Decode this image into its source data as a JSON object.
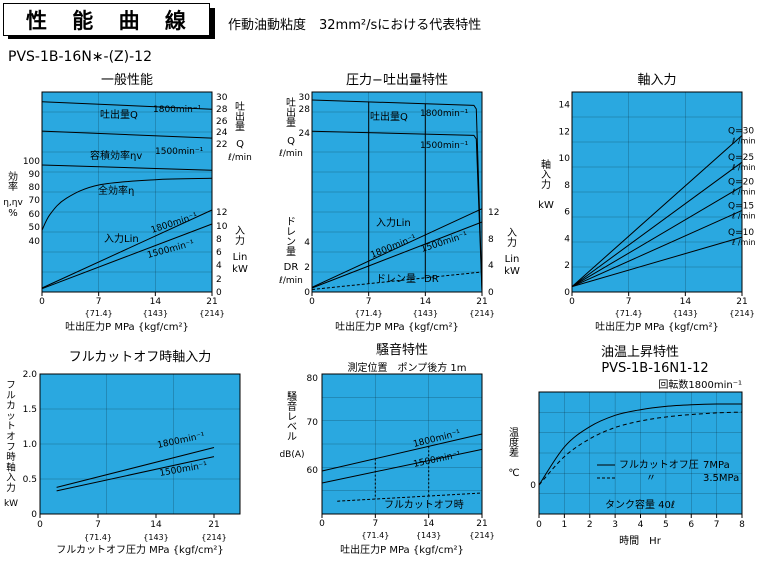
{
  "header": {
    "title": "性 能 曲 線",
    "subtitle": "作動油動粘度　32mm²/sにおける代表特性"
  },
  "model": "PVS-1B-16N∗-(Z)-12",
  "colors": {
    "plot_bg": "#2aa8e0",
    "line": "#000000"
  },
  "chart_data": [
    {
      "id": "c1",
      "type": "line",
      "title": "一般性能",
      "xlabel": "吐出圧力P MPa {kgf/cm²}",
      "x_ticks": [
        {
          "v": "0",
          "s": ""
        },
        {
          "v": "7",
          "s": "{71.4}"
        },
        {
          "v": "14",
          "s": "{143}"
        },
        {
          "v": "21",
          "s": "{214}"
        }
      ],
      "left_axis": {
        "label": "効率 η,ηv %",
        "ticks": [
          "100",
          "90",
          "80",
          "70",
          "60",
          "50",
          "40"
        ]
      },
      "right_top_axis": {
        "label": "吐出量 Q ℓ/min",
        "ticks": [
          "30",
          "28",
          "26",
          "24",
          "22"
        ]
      },
      "right_bottom_axis": {
        "label": "入力 Lin kW",
        "ticks": [
          "12",
          "10",
          "8",
          "6",
          "4",
          "2",
          "0"
        ]
      },
      "series": [
        {
          "name": "吐出量Q 1800min⁻¹",
          "x": [
            0,
            21
          ],
          "y": [
            29.2,
            27.9
          ]
        },
        {
          "name": "吐出量Q 1500min⁻¹",
          "x": [
            0,
            21
          ],
          "y": [
            24.2,
            23.0
          ]
        },
        {
          "name": "容積効率ηv",
          "x": [
            0,
            21
          ],
          "y": [
            97,
            93
          ]
        },
        {
          "name": "全効率η",
          "x": [
            0,
            1,
            3,
            7,
            14,
            21
          ],
          "y": [
            48,
            60,
            72,
            82,
            86,
            87
          ]
        },
        {
          "name": "入力Lin 1800min⁻¹",
          "x": [
            0,
            21
          ],
          "y": [
            0.6,
            12.3
          ]
        },
        {
          "name": "入力Lin 1500min⁻¹",
          "x": [
            0,
            21
          ],
          "y": [
            0.5,
            10.2
          ]
        }
      ],
      "labels": [
        "吐出量Q",
        "1800min⁻¹",
        "1500min⁻¹",
        "容積効率ηv",
        "全効率η",
        "入力Lin",
        "1800min⁻¹",
        "1500min⁻¹"
      ]
    },
    {
      "id": "c2",
      "type": "line",
      "title": "圧力−吐出量特性",
      "xlabel": "吐出圧力P MPa {kgf/cm²}",
      "x_ticks": [
        {
          "v": "0",
          "s": ""
        },
        {
          "v": "7",
          "s": "{71.4}"
        },
        {
          "v": "14",
          "s": "{143}"
        },
        {
          "v": "21",
          "s": "{214}"
        }
      ],
      "left_top_axis": {
        "label": "吐出量 Q ℓ/min",
        "ticks": [
          "30",
          "28",
          "24"
        ]
      },
      "left_bottom_axis": {
        "label": "ドレン量 DR ℓ/min",
        "ticks": [
          "4",
          "2",
          "0"
        ]
      },
      "right_axis": {
        "label": "入力 Lin kW",
        "ticks": [
          "12",
          "8",
          "4",
          "0"
        ]
      },
      "series": [
        {
          "name": "吐出量Q 1800min⁻¹",
          "x": [
            0,
            20,
            21
          ],
          "y": [
            29.5,
            28.6,
            0
          ]
        },
        {
          "name": "吐出量Q 1500min⁻¹",
          "x": [
            0,
            20,
            21
          ],
          "y": [
            24.3,
            23.6,
            0
          ]
        },
        {
          "name": "入力Lin 1800min⁻¹",
          "x": [
            0,
            21
          ],
          "y": [
            0.7,
            12.5
          ]
        },
        {
          "name": "入力Lin 1500min⁻¹",
          "x": [
            0,
            21
          ],
          "y": [
            0.6,
            10.5
          ]
        },
        {
          "name": "ドレン量DR",
          "x": [
            0,
            21
          ],
          "y": [
            0.2,
            1.6
          ]
        }
      ],
      "labels": [
        "吐出量Q",
        "1800min⁻¹",
        "1500min⁻¹",
        "入力Lin",
        "1800min⁻¹",
        "1500min⁻¹",
        "ドレン量",
        "DR"
      ]
    },
    {
      "id": "c3",
      "type": "line",
      "title": "軸入力",
      "xlabel": "吐出圧力P MPa {kgf/cm²}",
      "x_ticks": [
        {
          "v": "0",
          "s": ""
        },
        {
          "v": "7",
          "s": "{71.4}"
        },
        {
          "v": "14",
          "s": "{143}"
        },
        {
          "v": "21",
          "s": "{214}"
        }
      ],
      "left_axis": {
        "label": "軸入力 kW",
        "ticks": [
          "14",
          "12",
          "10",
          "8",
          "6",
          "4",
          "2",
          "0"
        ]
      },
      "ylim": [
        0,
        15
      ],
      "series": [
        {
          "name": "Q=30",
          "x": [
            0,
            21
          ],
          "y": [
            0.4,
            11.7
          ]
        },
        {
          "name": "Q=25",
          "x": [
            0,
            21
          ],
          "y": [
            0.4,
            9.7
          ]
        },
        {
          "name": "Q=20",
          "x": [
            0,
            21
          ],
          "y": [
            0.4,
            7.9
          ]
        },
        {
          "name": "Q=15",
          "x": [
            0,
            21
          ],
          "y": [
            0.4,
            6.1
          ]
        },
        {
          "name": "Q=10",
          "x": [
            0,
            21
          ],
          "y": [
            0.4,
            4.1
          ]
        }
      ],
      "q_labels": [
        "Q=30",
        "Q=25",
        "Q=20",
        "Q=15",
        "Q=10"
      ],
      "unit": "ℓ /min"
    },
    {
      "id": "c4",
      "type": "line",
      "title": "フルカットオフ時軸入力",
      "xlabel": "フルカットオフ圧力 MPa {kgf/cm²}",
      "x_ticks": [
        {
          "v": "0",
          "s": ""
        },
        {
          "v": "7",
          "s": "{71.4}"
        },
        {
          "v": "14",
          "s": "{143}"
        },
        {
          "v": "21",
          "s": "{214}"
        }
      ],
      "left_axis": {
        "label": "フルカットオフ時軸入力 kW",
        "ticks": [
          "2.0",
          "1.5",
          "1.0",
          "0.5",
          "0"
        ]
      },
      "ylim": [
        0,
        2
      ],
      "series": [
        {
          "name": "1800min⁻¹",
          "x": [
            2,
            21
          ],
          "y": [
            0.38,
            0.95
          ]
        },
        {
          "name": "1500min⁻¹",
          "x": [
            2,
            21
          ],
          "y": [
            0.33,
            0.82
          ]
        }
      ]
    },
    {
      "id": "c5",
      "type": "line",
      "title": "騒音特性",
      "subtitle": "測定位置　ポンプ後方 1m",
      "xlabel": "吐出圧力P MPa {kgf/cm²}",
      "x_ticks": [
        {
          "v": "0",
          "s": ""
        },
        {
          "v": "7",
          "s": "{71.4}"
        },
        {
          "v": "14",
          "s": "{143}"
        },
        {
          "v": "21",
          "s": "{214}"
        }
      ],
      "left_axis": {
        "label": "騒音レベル dB(A)",
        "ticks": [
          "80",
          "70",
          "60"
        ]
      },
      "series": [
        {
          "name": "1800min⁻¹",
          "x": [
            0,
            21
          ],
          "y": [
            59.8,
            67.5
          ]
        },
        {
          "name": "1500min⁻¹",
          "x": [
            0,
            21
          ],
          "y": [
            57.3,
            64.3
          ]
        },
        {
          "name": "フルカットオフ時",
          "x": [
            2,
            21
          ],
          "y": [
            53.5,
            55.2
          ]
        }
      ],
      "labels": [
        "1800min⁻¹",
        "1500min⁻¹",
        "フルカットオフ時"
      ]
    },
    {
      "id": "c6",
      "type": "line",
      "title": "油温上昇特性",
      "subtitle": "PVS-1B-16N1-12",
      "note": "回転数1800min⁻¹",
      "xlabel": "時間　Hr",
      "x_ticks": [
        "0",
        "1",
        "2",
        "3",
        "4",
        "5",
        "6",
        "7",
        "8"
      ],
      "left_axis": {
        "label": "温度差 ℃"
      },
      "series": [
        {
          "name": "フルカットオフ圧 7MPa",
          "x": [
            0,
            1,
            2,
            3,
            4,
            5,
            6,
            7,
            8
          ],
          "y": [
            0,
            0.47,
            0.72,
            0.86,
            0.93,
            0.97,
            0.99,
            1.0,
            1.0
          ]
        },
        {
          "name": "フルカットオフ圧 3.5MPa",
          "x": [
            0,
            1,
            2,
            3,
            4,
            5,
            6,
            7,
            8
          ],
          "y": [
            0,
            0.35,
            0.57,
            0.71,
            0.79,
            0.84,
            0.87,
            0.89,
            0.9
          ]
        }
      ],
      "legend": {
        "line1_a": "フルカットオフ圧",
        "line1_b": "7MPa",
        "line2_a": "〃",
        "line2_b": "3.5MPa",
        "tank": "タンク容量 40ℓ"
      }
    }
  ]
}
